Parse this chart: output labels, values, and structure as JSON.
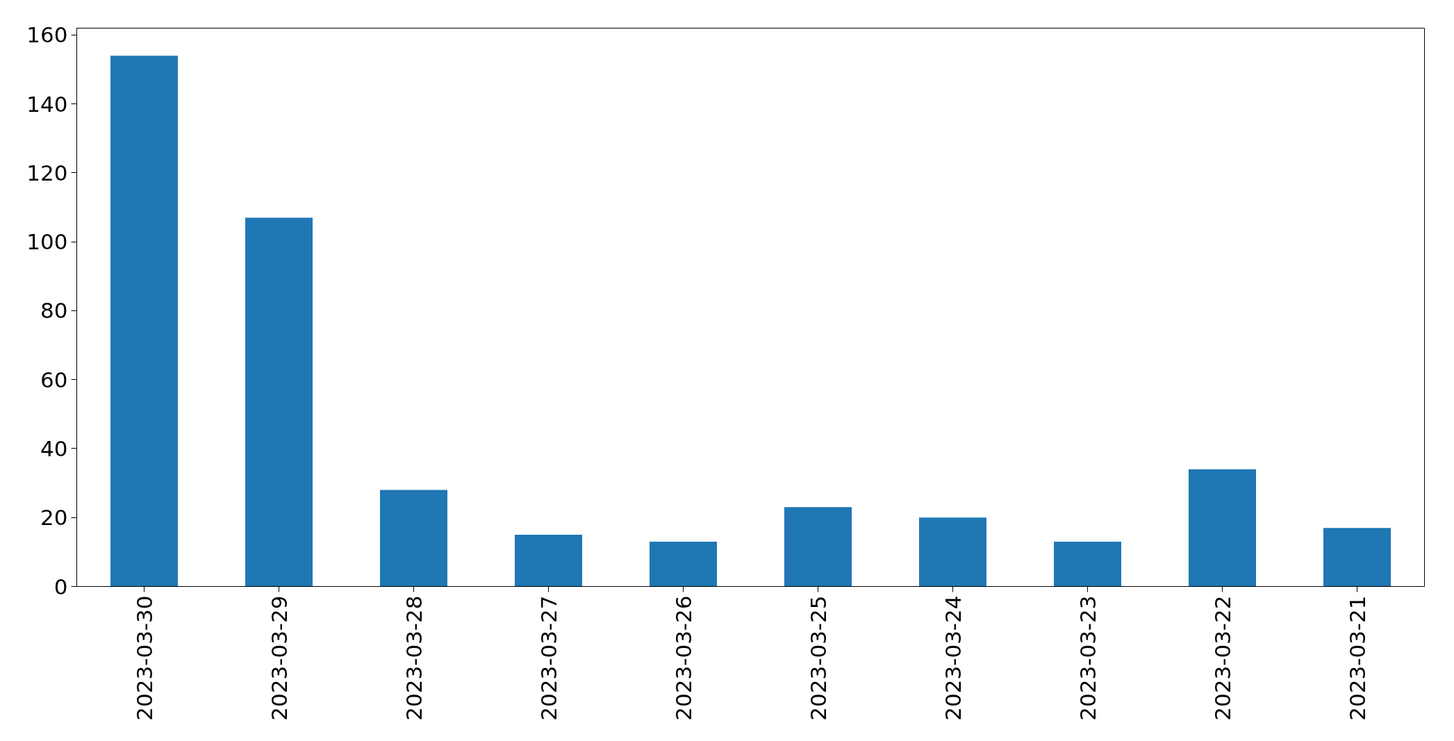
{
  "chart_data": {
    "type": "bar",
    "categories": [
      "2023-03-30",
      "2023-03-29",
      "2023-03-28",
      "2023-03-27",
      "2023-03-26",
      "2023-03-25",
      "2023-03-24",
      "2023-03-23",
      "2023-03-22",
      "2023-03-21"
    ],
    "values": [
      154,
      107,
      28,
      15,
      13,
      23,
      20,
      13,
      34,
      17
    ],
    "color": "#1f77b4",
    "ylim": [
      0,
      162
    ],
    "yticks": [
      0,
      20,
      40,
      60,
      80,
      100,
      120,
      140,
      160
    ],
    "grid": false
  }
}
